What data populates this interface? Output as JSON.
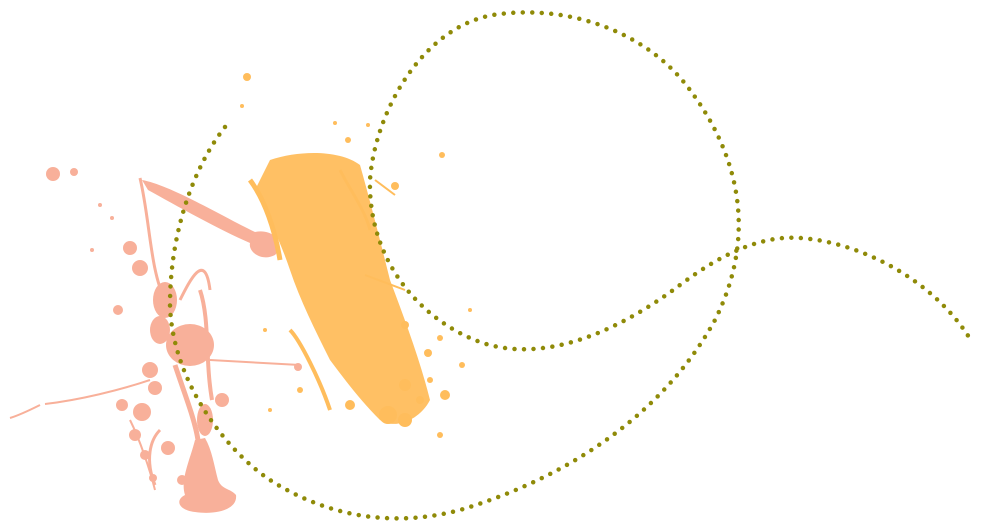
{
  "artwork": {
    "background_color": "#ffffff",
    "splatters": [
      {
        "name": "salmon-paint-splatter",
        "color": "#f8b09a"
      },
      {
        "name": "orange-paint-splatter",
        "color": "#ffbd5c"
      }
    ],
    "dotted_line": {
      "name": "olive-dotted-loop-line",
      "color": "#8f8a08"
    }
  }
}
